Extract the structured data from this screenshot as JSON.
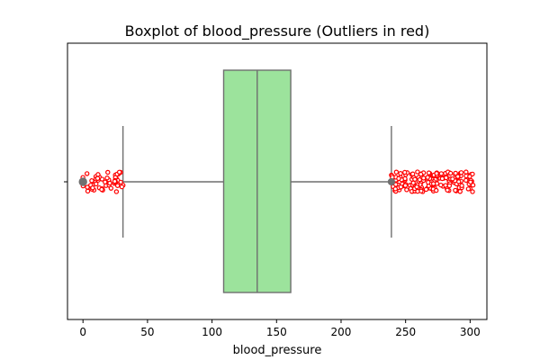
{
  "chart_data": {
    "type": "boxplot",
    "title": "Boxplot of blood_pressure (Outliers in red)",
    "xlabel": "blood_pressure",
    "ylabel": "",
    "xlim": [
      -12,
      313
    ],
    "x_ticks": [
      0,
      50,
      100,
      150,
      200,
      250,
      300
    ],
    "x_tick_labels": [
      "0",
      "50",
      "100",
      "150",
      "200",
      "250",
      "300"
    ],
    "grid": false,
    "box": {
      "q1": 109,
      "median": 135,
      "q3": 161,
      "whisker_low": 31,
      "whisker_high": 239
    },
    "outliers_low_range": [
      0,
      31
    ],
    "outliers_high_range": [
      239,
      303
    ],
    "colors": {
      "box_fill": "#9ce39c",
      "box_edge": "#6f6f6f",
      "outlier": "#ff0000",
      "outlier_fill": "#ffffff",
      "whisker": "#6f6f6f"
    }
  }
}
